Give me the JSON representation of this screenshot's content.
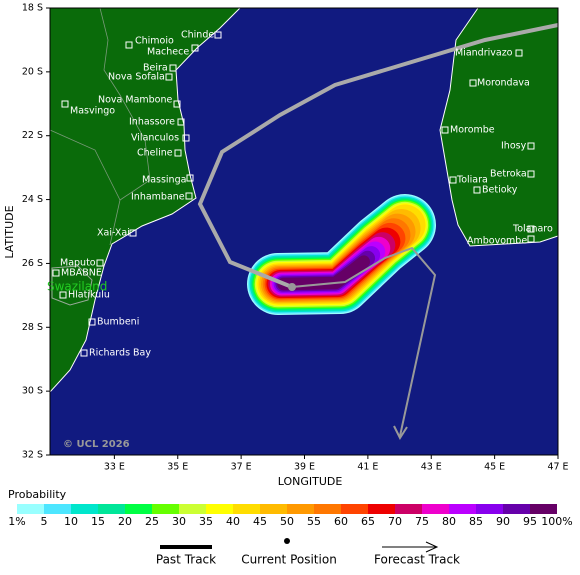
{
  "map": {
    "xlabel": "LONGITUDE",
    "ylabel": "LATITUDE",
    "xlim": [
      31,
      47
    ],
    "ylim": [
      -32,
      -18
    ],
    "xticks": [
      {
        "value": 33,
        "label": "33 E"
      },
      {
        "value": 35,
        "label": "35 E"
      },
      {
        "value": 37,
        "label": "37 E"
      },
      {
        "value": 39,
        "label": "39 E"
      },
      {
        "value": 41,
        "label": "41 E"
      },
      {
        "value": 43,
        "label": "43 E"
      },
      {
        "value": 45,
        "label": "45 E"
      },
      {
        "value": 47,
        "label": "47 E"
      }
    ],
    "yticks": [
      {
        "value": -18,
        "label": "18 S"
      },
      {
        "value": -20,
        "label": "20 S"
      },
      {
        "value": -22,
        "label": "22 S"
      },
      {
        "value": -24,
        "label": "24 S"
      },
      {
        "value": -26,
        "label": "26 S"
      },
      {
        "value": -28,
        "label": "28 S"
      },
      {
        "value": -30,
        "label": "30 S"
      },
      {
        "value": -32,
        "label": "32 S"
      }
    ],
    "places": [
      "Chinde",
      "Chimoio",
      "Machece",
      "Beira",
      "Nova Sofala",
      "Nova Mambone",
      "Masvingo",
      "Inhassore",
      "Vilanculos",
      "Cheline",
      "Massinga",
      "Inhambane",
      "Xai-Xai",
      "Maputo",
      "MBABNE",
      "Hlatikulu",
      "Bumbeni",
      "Richards Bay",
      "Miandrivazo",
      "Morondava",
      "Morombe",
      "Ihosy",
      "Toliara",
      "Betroka",
      "Betioky",
      "Tolanaro",
      "Ambovombe"
    ],
    "region_label": "Swaziland",
    "credit": "© UCL 2026"
  },
  "legend": {
    "title": "Probability",
    "labels": [
      "1%",
      "5",
      "10",
      "15",
      "20",
      "25",
      "30",
      "35",
      "40",
      "45",
      "50",
      "55",
      "60",
      "65",
      "70",
      "75",
      "80",
      "85",
      "90",
      "95",
      "100%"
    ],
    "colors": [
      "#99ffff",
      "#4de6ff",
      "#00e6cc",
      "#00e699",
      "#00ff44",
      "#66ff00",
      "#ccff33",
      "#ffff00",
      "#ffdd00",
      "#ffbb00",
      "#ff9900",
      "#ff7700",
      "#ff4400",
      "#ee0000",
      "#cc0066",
      "#ee00cc",
      "#bb00ff",
      "#8800ee",
      "#6600aa",
      "#660066"
    ],
    "past_track": "Past Track",
    "current_position": "Current Position",
    "forecast_track": "Forecast Track"
  }
}
